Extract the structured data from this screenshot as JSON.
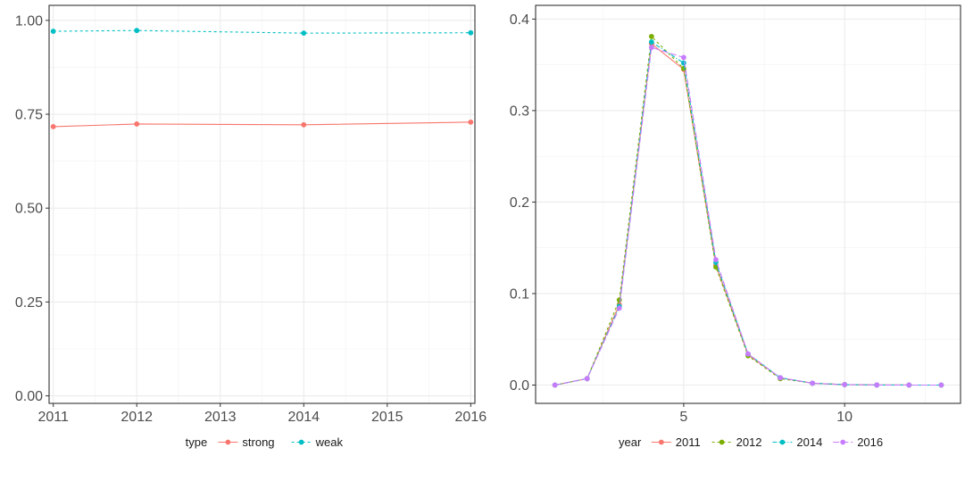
{
  "chart_data": [
    {
      "type": "line",
      "title": "",
      "xlabel": "",
      "ylabel": "",
      "x": [
        2011,
        2012,
        2014,
        2016
      ],
      "xticks": [
        "2011",
        "2012",
        "2013",
        "2014",
        "2015",
        "2016"
      ],
      "xlim": [
        2010.95,
        2016.05
      ],
      "yticks": [
        "0.00",
        "0.25",
        "0.50",
        "0.75",
        "1.00"
      ],
      "ylim": [
        -0.02,
        1.04
      ],
      "grid": true,
      "legend": {
        "title": "type",
        "position": "bottom"
      },
      "series": [
        {
          "name": "strong",
          "color": "#F8766D",
          "dash": "solid",
          "values": [
            0.717,
            0.724,
            0.722,
            0.729
          ]
        },
        {
          "name": "weak",
          "color": "#00BFC4",
          "dash": "dashed",
          "values": [
            0.971,
            0.973,
            0.966,
            0.967
          ]
        }
      ]
    },
    {
      "type": "line",
      "title": "",
      "xlabel": "",
      "ylabel": "",
      "x": [
        1,
        2,
        3,
        4,
        5,
        6,
        7,
        8,
        9,
        10,
        11,
        12,
        13
      ],
      "xticks": [
        "5",
        "10"
      ],
      "xlim": [
        0.4,
        13.6
      ],
      "yticks": [
        "0.0",
        "0.1",
        "0.2",
        "0.3",
        "0.4"
      ],
      "ylim": [
        -0.02,
        0.415
      ],
      "grid": true,
      "legend": {
        "title": "year",
        "position": "bottom"
      },
      "series": [
        {
          "name": "2011",
          "color": "#F8766D",
          "dash": "solid",
          "values": [
            0.0,
            0.007,
            0.088,
            0.373,
            0.345,
            0.131,
            0.033,
            0.008,
            0.002,
            0.0005,
            0.0001,
            0.0,
            0.0
          ]
        },
        {
          "name": "2012",
          "color": "#7CAE00",
          "dash": "dashed",
          "values": [
            0.0,
            0.007,
            0.093,
            0.381,
            0.346,
            0.129,
            0.032,
            0.007,
            0.002,
            0.0005,
            0.0001,
            0.0,
            0.0
          ]
        },
        {
          "name": "2014",
          "color": "#00BFC4",
          "dash": "dashdot",
          "values": [
            0.0,
            0.007,
            0.086,
            0.375,
            0.352,
            0.134,
            0.034,
            0.008,
            0.002,
            0.0005,
            0.0001,
            0.0,
            0.0
          ]
        },
        {
          "name": "2016",
          "color": "#C77CFF",
          "dash": "longdash",
          "values": [
            0.0,
            0.007,
            0.084,
            0.369,
            0.358,
            0.137,
            0.034,
            0.008,
            0.002,
            0.0005,
            0.0001,
            0.0,
            0.0
          ]
        }
      ]
    }
  ]
}
